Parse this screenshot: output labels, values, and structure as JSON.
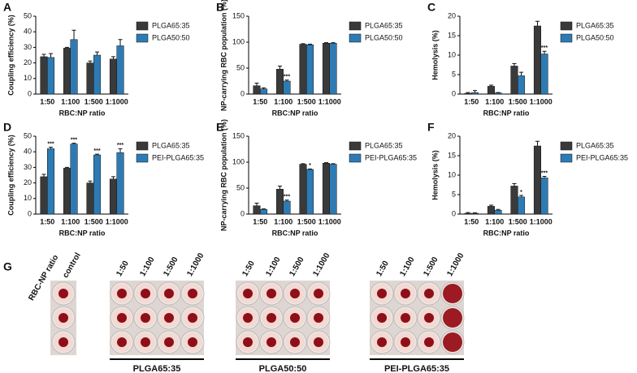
{
  "chart_data": [
    {
      "type": "bar",
      "panel": "A",
      "y_label": "Coupling efficiency (%)",
      "x_label": "RBC:NP ratio",
      "categories": [
        "1:50",
        "1:100",
        "1:500",
        "1:1000"
      ],
      "ylim": [
        0,
        50
      ],
      "yticks": [
        0,
        10,
        20,
        30,
        40,
        50
      ],
      "legend": "right",
      "series": [
        {
          "name": "PLGA65:35",
          "color": "#3a3a3a",
          "values": [
            24,
            29.5,
            20,
            22.5
          ],
          "errors": [
            1.5,
            0.5,
            1.2,
            1.5
          ]
        },
        {
          "name": "PLGA50:50",
          "color": "#2e7bb3",
          "values": [
            23.5,
            35,
            25,
            31
          ],
          "errors": [
            2.5,
            6,
            2,
            4
          ]
        }
      ]
    },
    {
      "type": "bar",
      "panel": "B",
      "y_label": "NP-carrying RBC population (%)",
      "x_label": "RBC:NP ratio",
      "categories": [
        "1:50",
        "1:100",
        "1:500",
        "1:1000"
      ],
      "ylim": [
        0,
        150
      ],
      "yticks": [
        0,
        50,
        100,
        150
      ],
      "legend": "right",
      "series": [
        {
          "name": "PLGA65:35",
          "color": "#3a3a3a",
          "values": [
            16,
            48,
            96,
            98
          ],
          "errors": [
            5,
            6,
            1,
            1
          ]
        },
        {
          "name": "PLGA50:50",
          "color": "#2e7bb3",
          "values": [
            10,
            25,
            95,
            98
          ],
          "errors": [
            2,
            2,
            1,
            1
          ],
          "significance": [
            null,
            "***",
            null,
            null
          ]
        }
      ]
    },
    {
      "type": "bar",
      "panel": "C",
      "y_label": "Hemolysis (%)",
      "x_label": "RBC:NP ratio",
      "categories": [
        "1:50",
        "1:100",
        "1:500",
        "1:1000"
      ],
      "ylim": [
        0,
        20
      ],
      "yticks": [
        0,
        5,
        10,
        15,
        20
      ],
      "legend": "right",
      "series": [
        {
          "name": "PLGA65:35",
          "color": "#3a3a3a",
          "values": [
            0.2,
            2,
            7.2,
            17.5
          ],
          "errors": [
            0.2,
            0.3,
            0.6,
            1.2
          ]
        },
        {
          "name": "PLGA50:50",
          "color": "#2e7bb3",
          "values": [
            0.4,
            0.3,
            4.7,
            10.3
          ],
          "errors": [
            0.5,
            0.1,
            0.9,
            0.7
          ],
          "significance": [
            null,
            null,
            null,
            "***"
          ]
        }
      ]
    },
    {
      "type": "bar",
      "panel": "D",
      "y_label": "Coupling efficiency (%)",
      "x_label": "RBC:NP ratio",
      "categories": [
        "1:50",
        "1:100",
        "1:500",
        "1:1000"
      ],
      "ylim": [
        0,
        50
      ],
      "yticks": [
        0,
        10,
        20,
        30,
        40,
        50
      ],
      "legend": "right",
      "series": [
        {
          "name": "PLGA65:35",
          "color": "#3a3a3a",
          "values": [
            24,
            29.5,
            20,
            22.5
          ],
          "errors": [
            1.5,
            0.5,
            1.2,
            1.5
          ]
        },
        {
          "name": "PEI-PLGA65:35",
          "color": "#2e7bb3",
          "values": [
            42,
            45,
            38,
            39.5
          ],
          "errors": [
            1,
            0.5,
            0.5,
            2.5
          ],
          "significance": [
            "***",
            "***",
            "***",
            "***"
          ]
        }
      ]
    },
    {
      "type": "bar",
      "panel": "E",
      "y_label": "NP-carrying RBC population (%)",
      "x_label": "RBC:NP ratio",
      "categories": [
        "1:50",
        "1:100",
        "1:500",
        "1:1000"
      ],
      "ylim": [
        0,
        150
      ],
      "yticks": [
        0,
        50,
        100,
        150
      ],
      "legend": "right",
      "series": [
        {
          "name": "PLGA65:35",
          "color": "#3a3a3a",
          "values": [
            16,
            48,
            96,
            98
          ],
          "errors": [
            5,
            6,
            1,
            1
          ]
        },
        {
          "name": "PEI-PLGA65:35",
          "color": "#2e7bb3",
          "values": [
            9,
            25,
            86,
            96
          ],
          "errors": [
            1,
            2,
            1,
            1
          ],
          "significance": [
            null,
            "***",
            "*",
            null
          ]
        }
      ]
    },
    {
      "type": "bar",
      "panel": "F",
      "y_label": "Hemolysis (%)",
      "x_label": "RBC:NP ratio",
      "categories": [
        "1:50",
        "1:100",
        "1:500",
        "1:1000"
      ],
      "ylim": [
        0,
        20
      ],
      "yticks": [
        0,
        5,
        10,
        15,
        20
      ],
      "legend": "right",
      "series": [
        {
          "name": "PLGA65:35",
          "color": "#3a3a3a",
          "values": [
            0.2,
            2,
            7.2,
            17.5
          ],
          "errors": [
            0.2,
            0.3,
            0.6,
            1.2
          ]
        },
        {
          "name": "PEI-PLGA65:35",
          "color": "#2e7bb3",
          "values": [
            0.2,
            1,
            4.4,
            9.3
          ],
          "errors": [
            0.1,
            0.2,
            0.4,
            0.4
          ],
          "significance": [
            null,
            null,
            "*",
            "***"
          ]
        }
      ]
    }
  ],
  "photo_panel": {
    "panel": "G",
    "row_label": "RBC-NP ratio",
    "control_label": "control",
    "groups": [
      {
        "name": "PLGA65:35",
        "columns": [
          "1:50",
          "1:100",
          "1:500",
          "1:1000"
        ]
      },
      {
        "name": "PLGA50:50",
        "columns": [
          "1:50",
          "1:100",
          "1:500",
          "1:1000"
        ]
      },
      {
        "name": "PEI-PLGA65:35",
        "columns": [
          "1:50",
          "1:100",
          "1:500",
          "1:1000"
        ]
      }
    ]
  }
}
